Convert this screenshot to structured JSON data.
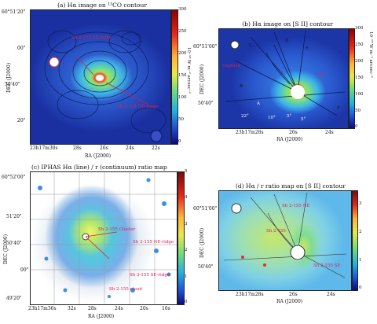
{
  "panels": {
    "a": {
      "title": "(a) Hα image on ¹³CO contour",
      "yticks": [
        "60°51'20\"",
        "00\"",
        "50'40\"",
        "20\""
      ],
      "xticks": [
        "23h17m30s",
        "28s",
        "26s",
        "24s",
        "22s"
      ],
      "xlabel": "RA (J2000)",
      "ylabel": "DEC (J2000)",
      "cbar_ticks": [
        "300",
        "250",
        "200",
        "150",
        "100",
        "50",
        "0"
      ],
      "cbar_label": "10⁻¹⁹ W m⁻² arcsec⁻²",
      "annotations": [
        "Sh 2-155 SE-ridge",
        "",
        "Sh 2-155 NE-ridge"
      ]
    },
    "b": {
      "title": "(b) Hα image on [S II] contour",
      "yticks": [
        "60°51'00\"",
        "50'40\""
      ],
      "xticks": [
        "23h17m28s",
        "26s",
        "24s"
      ],
      "xlabel": "RA (J2000)",
      "ylabel": "DEC (J2000)",
      "cbar_ticks": [
        "300",
        "250",
        "200",
        "150",
        "100",
        "50",
        "0"
      ],
      "cbar_label": "10⁻¹⁹ W m⁻² arcsec⁻²",
      "letters": [
        "C",
        "D",
        "E",
        "B",
        "A",
        "F"
      ],
      "angles": [
        "22°",
        "10°",
        "5°",
        "5°"
      ],
      "annotations": [
        "",
        "Cepheid",
        "N5",
        "P"
      ]
    },
    "c": {
      "title": "(c) IPHAS Hα (line) / r (continuum) ratio map",
      "yticks": [
        "60°52'00\"",
        "51'20\"",
        "50'40\"",
        "00\"",
        "49'20\""
      ],
      "xticks": [
        "23h17m36s",
        "32s",
        "28s",
        "24s",
        "20s",
        "16s"
      ],
      "xlabel": "RA (J2000)",
      "ylabel": "DEC (J2000)",
      "cbar_ticks": [
        "5",
        "4",
        "3",
        "2",
        "1",
        "0"
      ],
      "annotations": [
        "Sh 2-155 Cluster",
        "Sh 2-155 NE-ridge",
        "Sh 2-155 SE-ridge",
        "Sh 2-155 cloud"
      ]
    },
    "d": {
      "title": "(d) Hα / r ratio map on [S II] contour",
      "yticks": [
        "60°51'00\"",
        "50'40\""
      ],
      "xticks": [
        "23h17m28s",
        "26s",
        "24s"
      ],
      "xlabel": "RA (J2000)",
      "ylabel": "DEC (J2000)",
      "cbar_ticks": [
        "3",
        "2",
        "1",
        "0"
      ],
      "annotations": [
        "Sh 2-155 NE",
        "Sh 2-155 SE",
        "Sh 2-155"
      ]
    }
  }
}
